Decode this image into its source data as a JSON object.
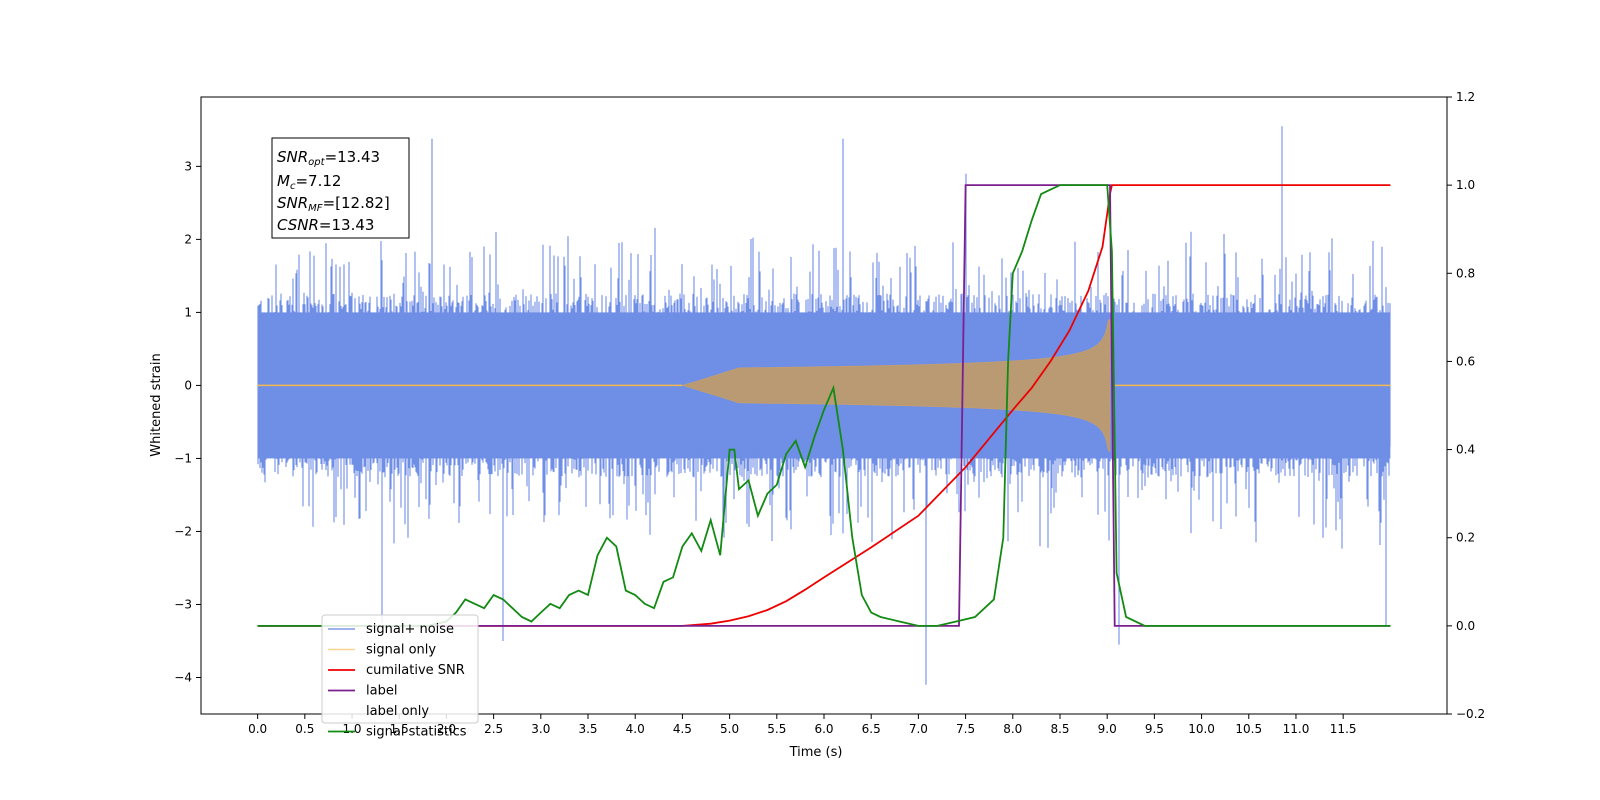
{
  "chart_data": {
    "type": "line",
    "title": "",
    "xlabel": "Time (s)",
    "ylabel": "Whitened strain",
    "y2label": "",
    "xlim": [
      -0.6,
      12.6
    ],
    "ylim": [
      -4.5,
      3.95
    ],
    "y2lim": [
      -0.2,
      1.2
    ],
    "x_ticks": [
      "0.0",
      "0.5",
      "1.0",
      "1.5",
      "2.0",
      "2.5",
      "3.0",
      "3.5",
      "4.0",
      "4.5",
      "5.0",
      "5.5",
      "6.0",
      "6.5",
      "7.0",
      "7.5",
      "8.0",
      "8.5",
      "9.0",
      "9.5",
      "10.0",
      "10.5",
      "11.0",
      "11.5"
    ],
    "y_ticks": [
      "−4",
      "−3",
      "−2",
      "−1",
      "0",
      "1",
      "2",
      "3"
    ],
    "y2_ticks": [
      "−0.2",
      "0.0",
      "0.2",
      "0.4",
      "0.6",
      "0.8",
      "1.0",
      "1.2"
    ],
    "grid": false,
    "legend_position": "lower-left",
    "annotation": {
      "snr_opt": "=13.43",
      "mc": "=7.12",
      "snr_mf": "=[12.82]",
      "csnr": "=13.43"
    },
    "noise_envelope": {
      "axis": "left",
      "x_range": [
        0.0,
        12.0
      ],
      "typical_amplitude": 1.4,
      "peaks": [
        {
          "x": 1.85,
          "y": 3.38
        },
        {
          "x": 1.32,
          "y": -3.25
        },
        {
          "x": 2.6,
          "y": -3.5
        },
        {
          "x": 6.2,
          "y": 3.38
        },
        {
          "x": 7.08,
          "y": -4.1
        },
        {
          "x": 7.5,
          "y": 2.9
        },
        {
          "x": 9.12,
          "y": -3.55
        },
        {
          "x": 10.85,
          "y": 3.55
        },
        {
          "x": 11.95,
          "y": -3.3
        }
      ]
    },
    "series": [
      {
        "name": "signal+ noise",
        "axis": "left",
        "color": "#6f8ee6",
        "note": "dense noise trace; rendered as a filled envelope"
      },
      {
        "name": "signal only",
        "axis": "left",
        "color": "#f5b84a",
        "chirp": {
          "start": 4.5,
          "merger": 9.03,
          "end": 12.0,
          "max_amplitude": 0.9
        }
      },
      {
        "name": "cumilative SNR",
        "axis": "right",
        "color": "#ee0000",
        "x": [
          0.0,
          4.5,
          4.8,
          5.0,
          5.2,
          5.4,
          5.6,
          5.8,
          6.0,
          6.5,
          7.0,
          7.5,
          8.0,
          8.2,
          8.4,
          8.6,
          8.8,
          8.95,
          9.03,
          9.05,
          12.0
        ],
        "values": [
          0.0,
          0.0,
          0.005,
          0.012,
          0.022,
          0.036,
          0.056,
          0.082,
          0.11,
          0.178,
          0.25,
          0.36,
          0.49,
          0.54,
          0.6,
          0.67,
          0.76,
          0.86,
          0.98,
          1.0,
          1.0
        ]
      },
      {
        "name": "label",
        "axis": "right",
        "color": "#7b1f8e",
        "x": [
          0.0,
          7.43,
          7.5,
          9.03,
          9.08,
          12.0
        ],
        "values": [
          0.0,
          0.0,
          1.0,
          1.0,
          0.0,
          0.0
        ]
      },
      {
        "name": "label only",
        "axis": "right",
        "color": "#7b1f8e",
        "x": [],
        "values": []
      },
      {
        "name": "signal statistics",
        "axis": "right",
        "color": "#138a13",
        "x": [
          0.0,
          1.8,
          2.0,
          2.1,
          2.2,
          2.3,
          2.4,
          2.5,
          2.6,
          2.7,
          2.8,
          2.9,
          3.0,
          3.1,
          3.2,
          3.3,
          3.4,
          3.5,
          3.6,
          3.7,
          3.8,
          3.9,
          4.0,
          4.1,
          4.2,
          4.3,
          4.4,
          4.5,
          4.6,
          4.7,
          4.8,
          4.9,
          5.0,
          5.05,
          5.1,
          5.2,
          5.3,
          5.4,
          5.5,
          5.6,
          5.7,
          5.8,
          5.9,
          6.0,
          6.1,
          6.2,
          6.3,
          6.4,
          6.5,
          6.6,
          6.8,
          7.0,
          7.2,
          7.4,
          7.6,
          7.8,
          7.9,
          7.95,
          8.0,
          8.1,
          8.2,
          8.3,
          8.4,
          8.5,
          8.6,
          8.8,
          9.0,
          9.05,
          9.1,
          9.2,
          9.4,
          12.0
        ],
        "values": [
          0.0,
          0.0,
          0.01,
          0.03,
          0.06,
          0.05,
          0.04,
          0.07,
          0.06,
          0.04,
          0.02,
          0.01,
          0.03,
          0.05,
          0.04,
          0.07,
          0.08,
          0.07,
          0.16,
          0.2,
          0.18,
          0.08,
          0.07,
          0.05,
          0.04,
          0.1,
          0.11,
          0.18,
          0.21,
          0.17,
          0.24,
          0.16,
          0.4,
          0.4,
          0.31,
          0.33,
          0.25,
          0.3,
          0.32,
          0.39,
          0.42,
          0.36,
          0.43,
          0.49,
          0.54,
          0.4,
          0.2,
          0.07,
          0.03,
          0.02,
          0.01,
          0.0,
          0.0,
          0.01,
          0.02,
          0.06,
          0.2,
          0.6,
          0.8,
          0.85,
          0.92,
          0.98,
          0.99,
          1.0,
          1.0,
          1.0,
          1.0,
          0.85,
          0.12,
          0.02,
          0.0,
          0.0
        ]
      }
    ]
  }
}
